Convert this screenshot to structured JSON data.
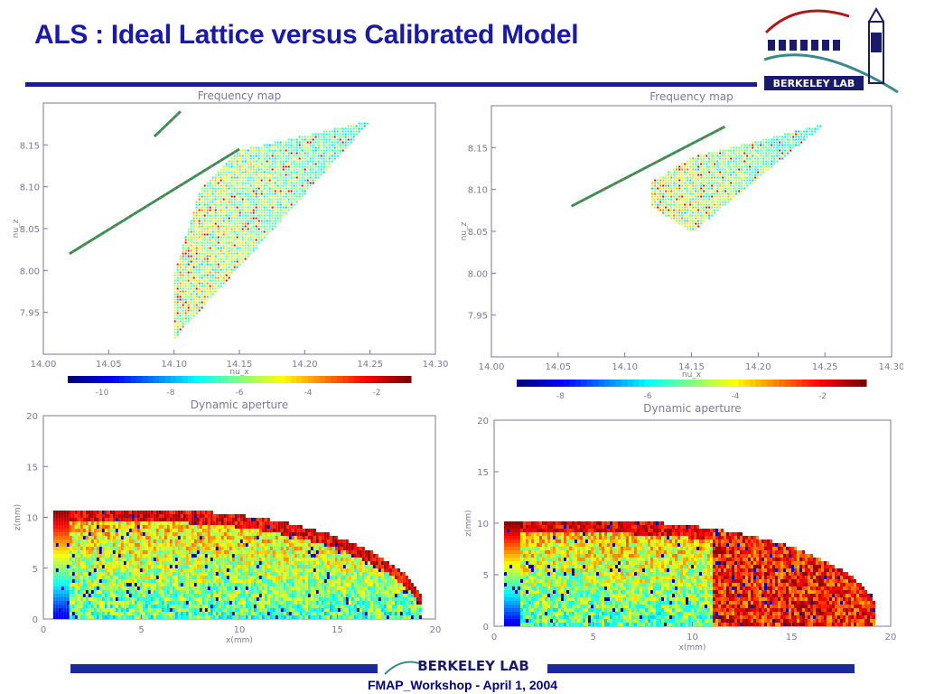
{
  "slide": {
    "title": "ALS : Ideal Lattice versus Calibrated Model",
    "footer": "FMAP_Workshop - April 1, 2004",
    "logo_text": "BERKELEY LAB",
    "footer_logo_text": "BERKELEY LAB"
  },
  "colors": {
    "title": "#1a1aa8",
    "rule": "#1a1aa8",
    "axes": "#7a7a9a"
  },
  "chart_data": [
    {
      "type": "scatter",
      "title": "Frequency map",
      "xlabel": "nu_x",
      "ylabel": "nu_z",
      "xlim": [
        14.0,
        14.3
      ],
      "ylim": [
        7.9,
        8.2
      ],
      "xticks": [
        "14.00",
        "14.05",
        "14.10",
        "14.15",
        "14.20",
        "14.25",
        "14.30"
      ],
      "yticks": [
        "7.95",
        "8.00",
        "8.05",
        "8.10",
        "8.15"
      ],
      "colorbar": {
        "range": [
          -11,
          -1
        ],
        "ticks": [
          "-10",
          "-8",
          "-6",
          "-4",
          "-2"
        ]
      },
      "regions": [
        {
          "name": "",
          "points": [
            [
              14.1,
              7.92
            ],
            [
              14.25,
              8.18
            ],
            [
              14.15,
              8.145
            ],
            [
              14.12,
              8.1
            ],
            [
              14.1,
              8.0
            ]
          ]
        }
      ],
      "lines": [
        {
          "x": [
            14.02,
            14.15
          ],
          "y": [
            8.02,
            8.145
          ]
        },
        {
          "x": [
            14.085,
            14.105
          ],
          "y": [
            8.16,
            8.19
          ]
        }
      ]
    },
    {
      "type": "scatter",
      "title": "Frequency map",
      "xlabel": "nu_x",
      "ylabel": "nu_z",
      "xlim": [
        14.0,
        14.3
      ],
      "ylim": [
        7.9,
        8.2
      ],
      "xticks": [
        "14.00",
        "14.05",
        "14.10",
        "14.15",
        "14.20",
        "14.25",
        "14.30"
      ],
      "yticks": [
        "7.95",
        "8.00",
        "8.05",
        "8.10",
        "8.15"
      ],
      "colorbar": {
        "range": [
          -9,
          -1
        ],
        "ticks": [
          "-8",
          "-6",
          "-4",
          "-2"
        ]
      },
      "regions": [
        {
          "name": "",
          "points": [
            [
              14.15,
              8.05
            ],
            [
              14.25,
              8.18
            ],
            [
              14.15,
              8.14
            ],
            [
              14.12,
              8.11
            ],
            [
              14.12,
              8.08
            ]
          ]
        }
      ],
      "lines": [
        {
          "x": [
            14.06,
            14.175
          ],
          "y": [
            8.08,
            8.175
          ]
        }
      ]
    },
    {
      "type": "heatmap",
      "title": "Dynamic aperture",
      "xlabel": "x(mm)",
      "ylabel": "z(mm)",
      "xlim": [
        0,
        20
      ],
      "ylim": [
        0,
        20
      ],
      "xticks": [
        "0",
        "5",
        "10",
        "15",
        "20"
      ],
      "yticks": [
        "0",
        "5",
        "10",
        "15",
        "20"
      ],
      "aperture_height_mm": 10.5
    },
    {
      "type": "heatmap",
      "title": "Dynamic aperture",
      "xlabel": "x(mm)",
      "ylabel": "z(mm)",
      "xlim": [
        0,
        20
      ],
      "ylim": [
        0,
        20
      ],
      "xticks": [
        "0",
        "5",
        "10",
        "15",
        "20"
      ],
      "yticks": [
        "0",
        "5",
        "10",
        "15",
        "20"
      ],
      "aperture_height_mm": 10.0
    }
  ]
}
